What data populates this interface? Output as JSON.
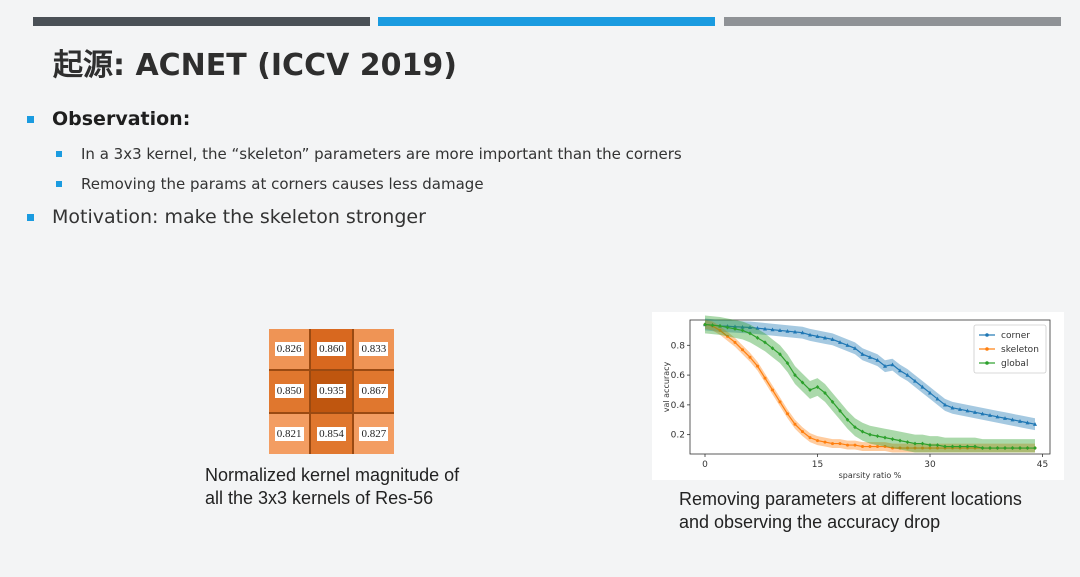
{
  "slide": {
    "title": "起源: ACNET (ICCV 2019)",
    "observation_label": "Observation:",
    "sub_bullets": [
      "In a 3x3 kernel, the “skeleton” parameters are more important than the corners",
      "Removing the params at corners causes less damage"
    ],
    "motivation": "Motivation: make the skeleton stronger",
    "kernel_caption": [
      "Normalized kernel magnitude of",
      "all the 3x3 kernels of Res-56"
    ],
    "chart_caption": [
      "Removing parameters at different locations",
      "and observing the accuracy drop"
    ],
    "colors": {
      "accent": "#1a9be0",
      "dark_bar": "#4a5056",
      "grey_bar": "#8f9296"
    }
  },
  "kernel": {
    "values": [
      [
        "0.826",
        "0.860",
        "0.833"
      ],
      [
        "0.850",
        "0.935",
        "0.867"
      ],
      [
        "0.821",
        "0.854",
        "0.827"
      ]
    ],
    "colors": [
      [
        "#ef9455",
        "#d8681f",
        "#ef9455"
      ],
      [
        "#e0772e",
        "#bf560f",
        "#e0772e"
      ],
      [
        "#f39d62",
        "#e0772e",
        "#f39d62"
      ]
    ]
  },
  "chart_data": {
    "type": "line",
    "xlabel": "sparsity ratio %",
    "ylabel": "val accuracy",
    "xlim": [
      -2,
      46
    ],
    "ylim": [
      0.07,
      0.97
    ],
    "xticks": [
      0,
      15,
      30,
      45
    ],
    "yticks": [
      0.2,
      0.4,
      0.6,
      0.8
    ],
    "legend_position": "top-right",
    "series": [
      {
        "name": "corner",
        "color": "#1f77b4",
        "marker": "triangle",
        "x": [
          0,
          1,
          2,
          3,
          4,
          5,
          6,
          7,
          8,
          9,
          10,
          11,
          12,
          13,
          14,
          15,
          16,
          17,
          18,
          19,
          20,
          21,
          22,
          23,
          24,
          25,
          26,
          27,
          28,
          29,
          30,
          31,
          32,
          33,
          34,
          35,
          36,
          37,
          38,
          39,
          40,
          41,
          42,
          43,
          44
        ],
        "y": [
          0.94,
          0.935,
          0.93,
          0.928,
          0.925,
          0.922,
          0.92,
          0.915,
          0.91,
          0.905,
          0.9,
          0.895,
          0.89,
          0.885,
          0.87,
          0.86,
          0.85,
          0.84,
          0.82,
          0.8,
          0.78,
          0.74,
          0.72,
          0.7,
          0.66,
          0.67,
          0.63,
          0.6,
          0.56,
          0.52,
          0.48,
          0.44,
          0.4,
          0.38,
          0.37,
          0.36,
          0.35,
          0.34,
          0.33,
          0.32,
          0.31,
          0.3,
          0.29,
          0.28,
          0.27
        ],
        "band": 0.04
      },
      {
        "name": "skeleton",
        "color": "#ff7f0e",
        "marker": "circle",
        "x": [
          0,
          1,
          2,
          3,
          4,
          5,
          6,
          7,
          8,
          9,
          10,
          11,
          12,
          13,
          14,
          15,
          16,
          17,
          18,
          19,
          20,
          21,
          22,
          23,
          24,
          25,
          26,
          27,
          28,
          29,
          30,
          31,
          32,
          33,
          34,
          35,
          36,
          37,
          38,
          39,
          40,
          41,
          42,
          43,
          44
        ],
        "y": [
          0.94,
          0.93,
          0.9,
          0.86,
          0.82,
          0.77,
          0.72,
          0.66,
          0.58,
          0.5,
          0.42,
          0.34,
          0.27,
          0.22,
          0.18,
          0.16,
          0.15,
          0.14,
          0.14,
          0.13,
          0.13,
          0.12,
          0.12,
          0.12,
          0.12,
          0.11,
          0.11,
          0.11,
          0.11,
          0.11,
          0.11,
          0.11,
          0.11,
          0.11,
          0.11,
          0.11,
          0.11,
          0.11,
          0.11,
          0.11,
          0.11,
          0.11,
          0.11,
          0.11,
          0.11
        ],
        "band": 0.03
      },
      {
        "name": "global",
        "color": "#2ca02c",
        "marker": "diamond",
        "x": [
          0,
          1,
          2,
          3,
          4,
          5,
          6,
          7,
          8,
          9,
          10,
          11,
          12,
          13,
          14,
          15,
          16,
          17,
          18,
          19,
          20,
          21,
          22,
          23,
          24,
          25,
          26,
          27,
          28,
          29,
          30,
          31,
          32,
          33,
          34,
          35,
          36,
          37,
          38,
          39,
          40,
          41,
          42,
          43,
          44
        ],
        "y": [
          0.94,
          0.935,
          0.93,
          0.92,
          0.91,
          0.9,
          0.88,
          0.85,
          0.82,
          0.78,
          0.74,
          0.68,
          0.6,
          0.55,
          0.5,
          0.52,
          0.48,
          0.42,
          0.36,
          0.3,
          0.25,
          0.22,
          0.2,
          0.19,
          0.18,
          0.17,
          0.16,
          0.15,
          0.14,
          0.14,
          0.13,
          0.13,
          0.12,
          0.12,
          0.12,
          0.12,
          0.12,
          0.11,
          0.11,
          0.11,
          0.11,
          0.11,
          0.11,
          0.11,
          0.11
        ],
        "band": 0.06
      }
    ]
  }
}
